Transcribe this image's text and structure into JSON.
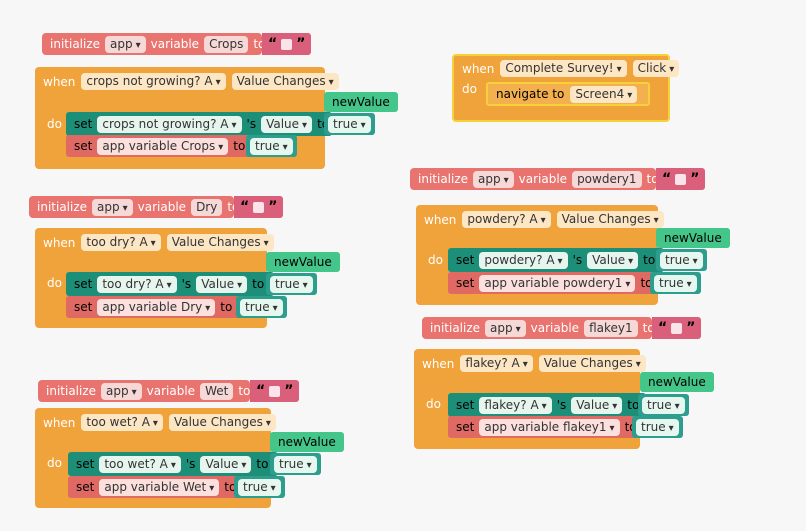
{
  "kw": {
    "initialize": "initialize",
    "app": "app",
    "variable": "variable",
    "to": "to",
    "when": "when",
    "do": "do",
    "set": "set",
    "s": "'s",
    "value": "Value",
    "value_changes": "Value Changes",
    "new_value": "newValue",
    "true": "true",
    "quote_open": "“",
    "quote_close": "”",
    "click": "Click",
    "navigate_to": "navigate to"
  },
  "crops": {
    "var": "Crops",
    "component": "crops not growing? A",
    "setvar": "app variable Crops"
  },
  "dry": {
    "var": "Dry",
    "component": "too dry? A",
    "setvar": "app variable Dry"
  },
  "wet": {
    "var": "Wet",
    "component": "too wet? A",
    "setvar": "app variable Wet"
  },
  "survey": {
    "component": "Complete Survey!",
    "screen": "Screen4"
  },
  "powdery": {
    "var": "powdery1",
    "component": "powdery? A",
    "setvar": "app variable powdery1"
  },
  "flakey": {
    "var": "flakey1",
    "component": "flakey? A",
    "setvar": "app variable flakey1"
  }
}
